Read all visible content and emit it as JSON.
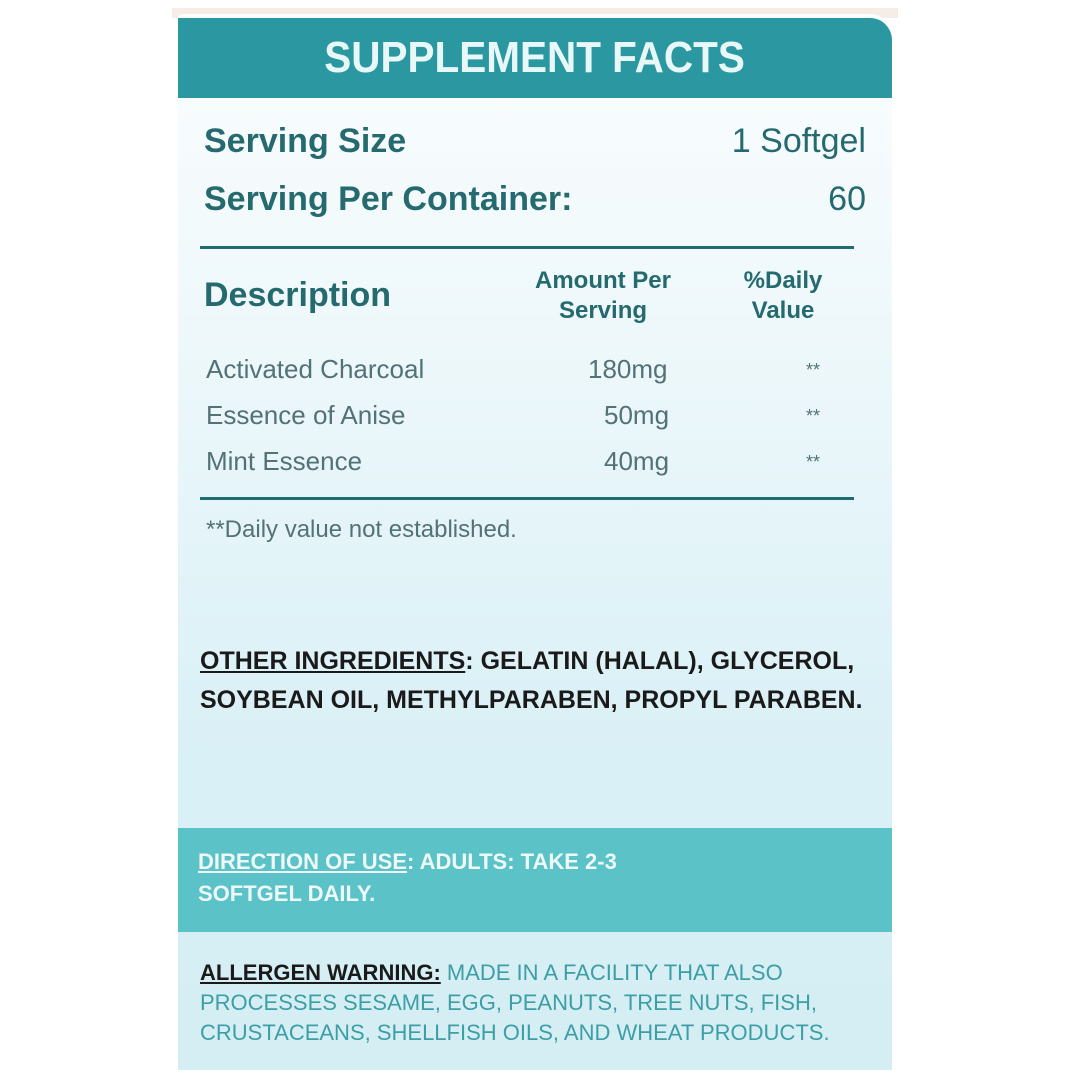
{
  "title": "SUPPLEMENT FACTS",
  "serving": [
    {
      "label": "Serving Size",
      "value": "1 Softgel"
    },
    {
      "label": "Serving Per Container:",
      "value": "60"
    }
  ],
  "table": {
    "headers": {
      "description": "Description",
      "amount": "Amount Per Serving",
      "daily_value": "%Daily Value"
    },
    "rows": [
      {
        "name": "Activated Charcoal",
        "amount": "180mg",
        "dv": "**"
      },
      {
        "name": "Essence of Anise",
        "amount": "50mg",
        "dv": "**"
      },
      {
        "name": "Mint Essence",
        "amount": "40mg",
        "dv": "**"
      }
    ],
    "footnote": "**Daily value not established."
  },
  "other_ingredients": {
    "label": "OTHER INGREDIENTS",
    "text": ": GELATIN (HALAL), GLYCEROL, SOYBEAN OIL, METHYLPARABEN, PROPYL PARABEN."
  },
  "direction": {
    "label": "DIRECTION OF USE",
    "text": ": ADULTS: TAKE 2-3 SOFTGEL DAILY."
  },
  "allergen": {
    "label": "ALLERGEN WARNING:",
    "text": " MADE IN A FACILITY THAT ALSO PROCESSES SESAME, EGG, PEANUTS, TREE NUTS, FISH, CRUSTACEANS, SHELLFISH OILS, AND WHEAT PRODUCTS."
  },
  "colors": {
    "header": "#2b98a1",
    "direction_band": "#5bc2c8",
    "text_teal": "#246a6f",
    "allergen_text": "#3d9ea5"
  }
}
